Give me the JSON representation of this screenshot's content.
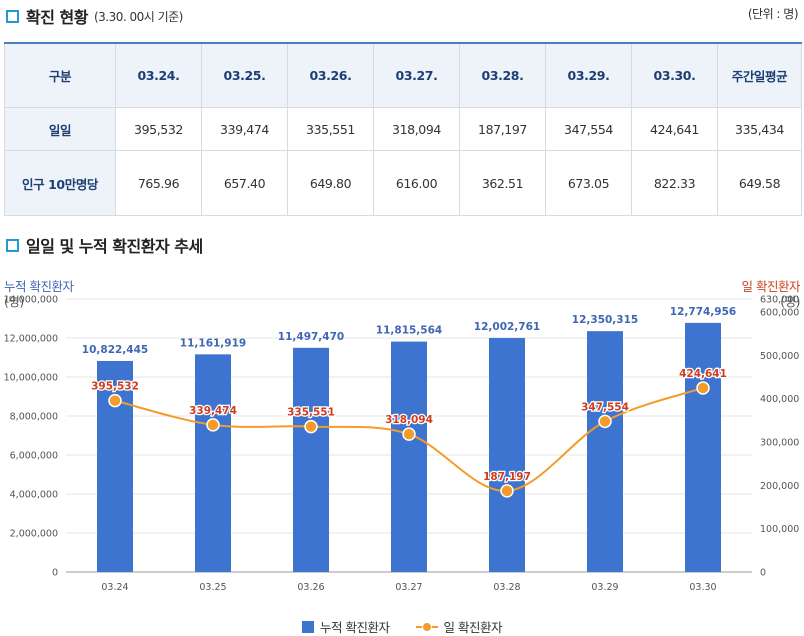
{
  "section1": {
    "title": "확진 현황",
    "subtitle": "(3.30. 00시 기준)",
    "unit": "(단위 : 명)"
  },
  "table": {
    "headers": [
      "구분",
      "03.24.",
      "03.25.",
      "03.26.",
      "03.27.",
      "03.28.",
      "03.29.",
      "03.30.",
      "주간일평균"
    ],
    "rows": [
      {
        "label": "일일",
        "values": [
          "395,532",
          "339,474",
          "335,551",
          "318,094",
          "187,197",
          "347,554",
          "424,641",
          "335,434"
        ]
      },
      {
        "label": "인구 10만명당",
        "values": [
          "765.96",
          "657.40",
          "649.80",
          "616.00",
          "362.51",
          "673.05",
          "822.33",
          "649.58"
        ]
      }
    ]
  },
  "section2": {
    "title": "일일 및 누적 확진환자 추세"
  },
  "chart_data": {
    "type": "bar",
    "categories": [
      "03.24",
      "03.25",
      "03.26",
      "03.27",
      "03.28",
      "03.29",
      "03.30"
    ],
    "left_axis": {
      "title": "누적 확진환자",
      "unit": "(명)",
      "range": [
        0,
        14000000
      ],
      "ticks": [
        "0",
        "2,000,000",
        "4,000,000",
        "6,000,000",
        "8,000,000",
        "10,000,000",
        "12,000,000",
        "14,000,000"
      ]
    },
    "right_axis": {
      "title": "일 확진환자",
      "unit": "(명)",
      "range": [
        0,
        630000
      ],
      "ticks": [
        "0",
        "100,000",
        "200,000",
        "300,000",
        "400,000",
        "500,000",
        "600,000",
        "630,000"
      ]
    },
    "series": [
      {
        "name": "누적 확진환자",
        "type": "bar",
        "axis": "left",
        "color": "#3d74cf",
        "values": [
          10822445,
          11161919,
          11497470,
          11815564,
          12002761,
          12350315,
          12774956
        ],
        "labels": [
          "10,822,445",
          "11,161,919",
          "11,497,470",
          "11,815,564",
          "12,002,761",
          "12,350,315",
          "12,774,956"
        ]
      },
      {
        "name": "일 확진환자",
        "type": "line",
        "axis": "right",
        "color": "#f39b2b",
        "values": [
          395532,
          339474,
          335551,
          318094,
          187197,
          347554,
          424641
        ],
        "labels": [
          "395,532",
          "339,474",
          "335,551",
          "318,094",
          "187,197",
          "347,554",
          "424,641"
        ]
      }
    ],
    "legend": "bottom-center",
    "grid": true
  }
}
